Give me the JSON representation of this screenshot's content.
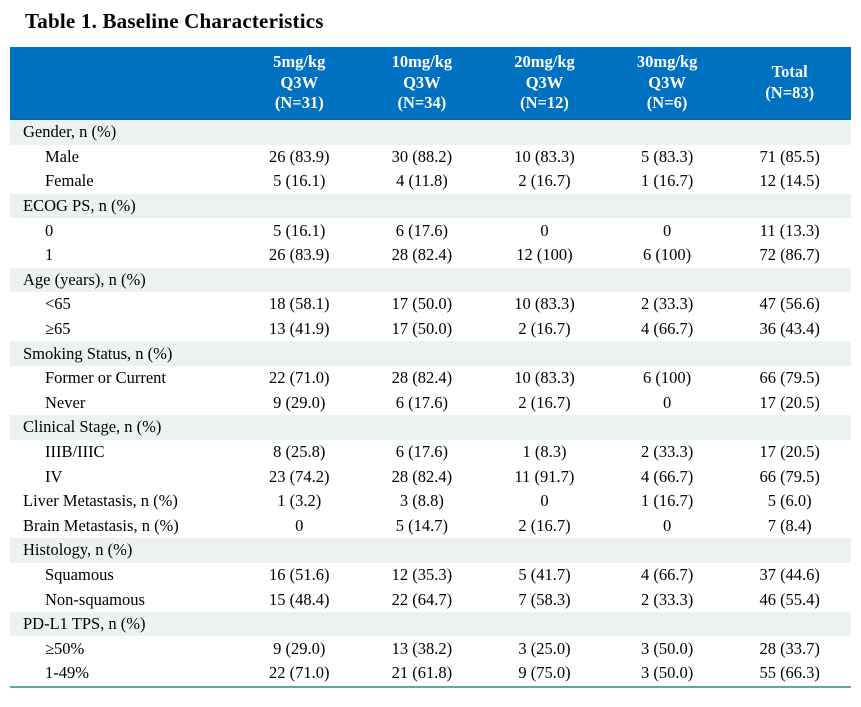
{
  "title": "Table 1. Baseline Characteristics",
  "colors": {
    "header_bg": "#0070C0",
    "header_text": "#FFFFFF",
    "section_bg": "#ECF3EF",
    "border_teal": "#5FA99B",
    "text": "#000000"
  },
  "table": {
    "label_column_header": "",
    "columns": [
      {
        "lines": [
          "5mg/kg",
          "Q3W",
          "(N=31)"
        ]
      },
      {
        "lines": [
          "10mg/kg",
          "Q3W",
          "(N=34)"
        ]
      },
      {
        "lines": [
          "20mg/kg",
          "Q3W",
          "(N=12)"
        ]
      },
      {
        "lines": [
          "30mg/kg",
          "Q3W",
          "(N=6)"
        ]
      },
      {
        "lines": [
          "Total",
          "(N=83)"
        ]
      }
    ],
    "rows": [
      {
        "type": "section",
        "label": "Gender, n (%)",
        "values": []
      },
      {
        "type": "data",
        "label": "Male",
        "values": [
          "26 (83.9)",
          "30 (88.2)",
          "10 (83.3)",
          "5 (83.3)",
          "71 (85.5)"
        ]
      },
      {
        "type": "data",
        "label": "Female",
        "values": [
          "5 (16.1)",
          "4 (11.8)",
          "2 (16.7)",
          "1 (16.7)",
          "12 (14.5)"
        ]
      },
      {
        "type": "section",
        "label": "ECOG PS, n (%)",
        "values": []
      },
      {
        "type": "data",
        "label": "0",
        "values": [
          "5 (16.1)",
          "6 (17.6)",
          "0",
          "0",
          "11 (13.3)"
        ]
      },
      {
        "type": "data",
        "label": "1",
        "values": [
          "26 (83.9)",
          "28 (82.4)",
          "12 (100)",
          "6 (100)",
          "72 (86.7)"
        ]
      },
      {
        "type": "section",
        "label": "Age (years), n (%)",
        "values": []
      },
      {
        "type": "data",
        "label": "<65",
        "values": [
          "18 (58.1)",
          "17 (50.0)",
          "10 (83.3)",
          "2 (33.3)",
          "47 (56.6)"
        ]
      },
      {
        "type": "data",
        "label": "≥65",
        "values": [
          "13 (41.9)",
          "17 (50.0)",
          "2 (16.7)",
          "4 (66.7)",
          "36 (43.4)"
        ]
      },
      {
        "type": "section",
        "label": "Smoking Status, n (%)",
        "values": []
      },
      {
        "type": "data",
        "label": "Former or Current",
        "values": [
          "22 (71.0)",
          "28 (82.4)",
          "10 (83.3)",
          "6 (100)",
          "66 (79.5)"
        ]
      },
      {
        "type": "data",
        "label": "Never",
        "values": [
          "9 (29.0)",
          "6 (17.6)",
          "2 (16.7)",
          "0",
          "17 (20.5)"
        ]
      },
      {
        "type": "section",
        "label": "Clinical Stage, n (%)",
        "values": []
      },
      {
        "type": "data",
        "label": "IIIB/IIIC",
        "values": [
          "8 (25.8)",
          "6 (17.6)",
          "1 (8.3)",
          "2 (33.3)",
          "17 (20.5)"
        ]
      },
      {
        "type": "data",
        "label": "IV",
        "values": [
          "23 (74.2)",
          "28 (82.4)",
          "11 (91.7)",
          "4 (66.7)",
          "66 (79.5)"
        ]
      },
      {
        "type": "flat",
        "label": "Liver Metastasis, n (%)",
        "values": [
          "1 (3.2)",
          "3 (8.8)",
          "0",
          "1 (16.7)",
          "5 (6.0)"
        ]
      },
      {
        "type": "flat",
        "label": "Brain Metastasis, n (%)",
        "values": [
          "0",
          "5 (14.7)",
          "2 (16.7)",
          "0",
          "7 (8.4)"
        ]
      },
      {
        "type": "section",
        "label": "Histology, n (%)",
        "values": []
      },
      {
        "type": "data",
        "label": "Squamous",
        "values": [
          "16 (51.6)",
          "12 (35.3)",
          "5 (41.7)",
          "4 (66.7)",
          "37 (44.6)"
        ]
      },
      {
        "type": "data",
        "label": "Non-squamous",
        "values": [
          "15 (48.4)",
          "22 (64.7)",
          "7 (58.3)",
          "2 (33.3)",
          "46 (55.4)"
        ]
      },
      {
        "type": "section",
        "label": "PD-L1 TPS, n (%)",
        "values": []
      },
      {
        "type": "data",
        "label": "≥50%",
        "values": [
          "9 (29.0)",
          "13 (38.2)",
          "3 (25.0)",
          "3 (50.0)",
          "28 (33.7)"
        ]
      },
      {
        "type": "data",
        "label": "1-49%",
        "values": [
          "22 (71.0)",
          "21 (61.8)",
          "9 (75.0)",
          "3 (50.0)",
          "55 (66.3)"
        ]
      }
    ]
  }
}
